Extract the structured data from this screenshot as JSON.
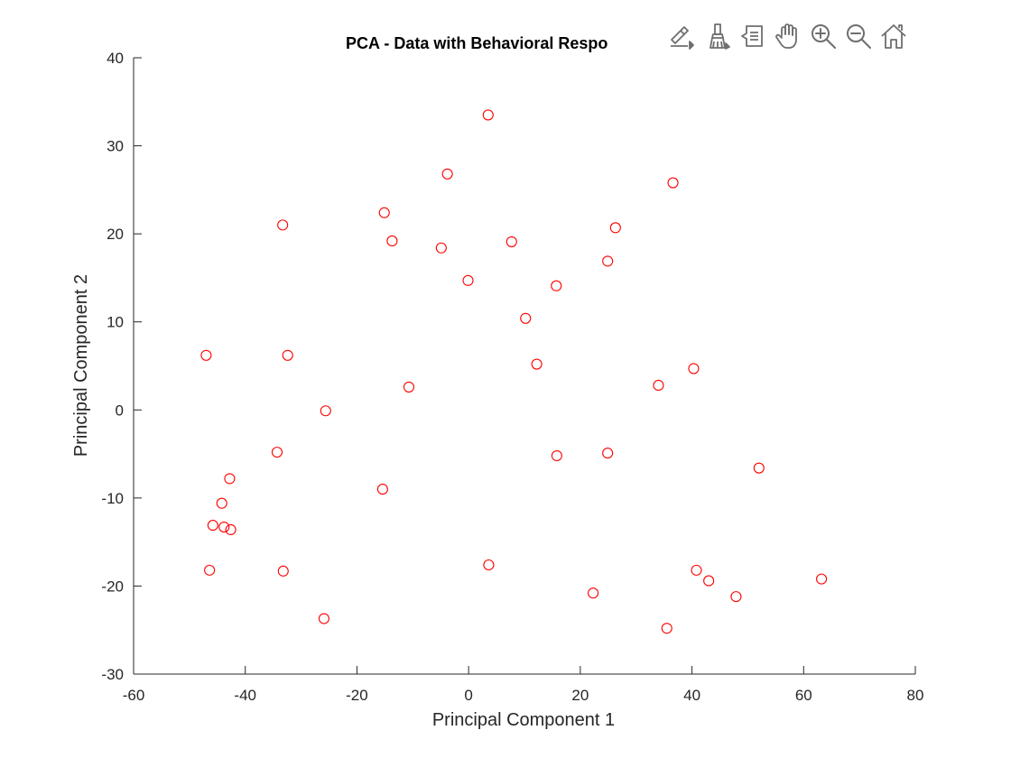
{
  "figure": {
    "toolbar": [
      {
        "name": "edit-data-tips-icon"
      },
      {
        "name": "brush-icon"
      },
      {
        "name": "data-cursor-icon"
      },
      {
        "name": "pan-hand-icon"
      },
      {
        "name": "zoom-in-icon"
      },
      {
        "name": "zoom-out-icon"
      },
      {
        "name": "home-restore-icon"
      }
    ]
  },
  "chart_data": {
    "type": "scatter",
    "title": "PCA - Data with Behavioral Respo",
    "xlabel": "Principal Component 1",
    "ylabel": "Principal Component 2",
    "xlim": [
      -60,
      80
    ],
    "ylim": [
      -30,
      40
    ],
    "xticks": [
      -60,
      -40,
      -20,
      0,
      20,
      40,
      60,
      80
    ],
    "yticks": [
      -30,
      -20,
      -10,
      0,
      10,
      20,
      30,
      40
    ],
    "grid": false,
    "marker": "circle",
    "marker_color": "#ff0000",
    "series": [
      {
        "points": [
          [
            3.5,
            33.5
          ],
          [
            -3.8,
            26.8
          ],
          [
            36.6,
            25.8
          ],
          [
            -33.3,
            21.0
          ],
          [
            -15.1,
            22.4
          ],
          [
            26.3,
            20.7
          ],
          [
            -13.7,
            19.2
          ],
          [
            -4.9,
            18.4
          ],
          [
            7.7,
            19.1
          ],
          [
            24.9,
            16.9
          ],
          [
            -0.1,
            14.7
          ],
          [
            15.7,
            14.1
          ],
          [
            10.2,
            10.4
          ],
          [
            -47.0,
            6.2
          ],
          [
            -32.4,
            6.2
          ],
          [
            12.2,
            5.2
          ],
          [
            40.3,
            4.7
          ],
          [
            34.0,
            2.8
          ],
          [
            -10.7,
            2.6
          ],
          [
            -25.6,
            -0.1
          ],
          [
            -34.3,
            -4.8
          ],
          [
            15.8,
            -5.2
          ],
          [
            24.9,
            -4.9
          ],
          [
            52.0,
            -6.6
          ],
          [
            -42.8,
            -7.8
          ],
          [
            -15.4,
            -9.0
          ],
          [
            -44.2,
            -10.6
          ],
          [
            -45.8,
            -13.1
          ],
          [
            -43.8,
            -13.3
          ],
          [
            -42.6,
            -13.6
          ],
          [
            -46.4,
            -18.2
          ],
          [
            -33.2,
            -18.3
          ],
          [
            3.6,
            -17.6
          ],
          [
            40.8,
            -18.2
          ],
          [
            43.0,
            -19.4
          ],
          [
            63.2,
            -19.2
          ],
          [
            22.3,
            -20.8
          ],
          [
            47.9,
            -21.2
          ],
          [
            -25.9,
            -23.7
          ],
          [
            35.5,
            -24.8
          ]
        ]
      }
    ]
  }
}
